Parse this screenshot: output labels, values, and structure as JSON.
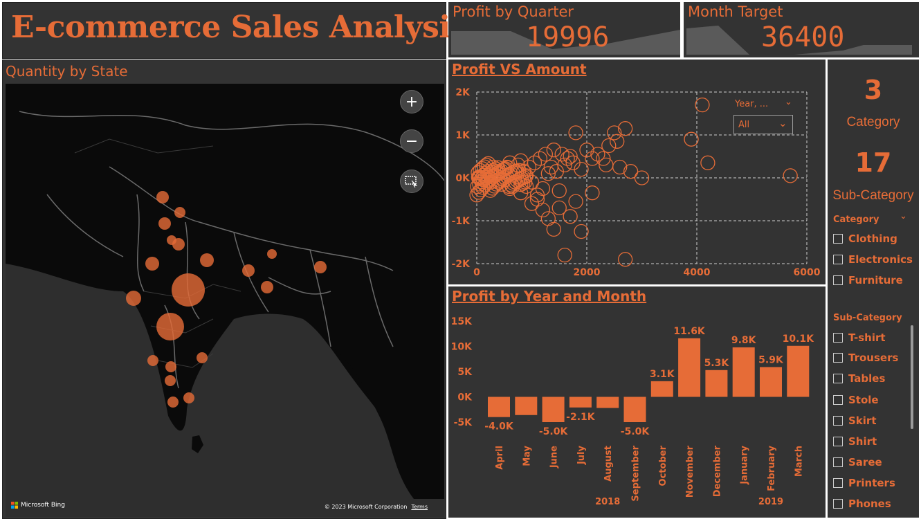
{
  "dashboard": {
    "title": "E-commerce Sales Analysis"
  },
  "map": {
    "title": "Quantity by State",
    "zoom_in": "+",
    "zoom_out": "−",
    "bing_label": "Microsoft Bing",
    "copyright": "© 2023 Microsoft Corporation",
    "terms": "Terms",
    "bubble_color": "#e66c37",
    "icons": {
      "zoom_in": "plus-icon",
      "zoom_out": "minus-icon",
      "select": "selection-icon"
    }
  },
  "kpis": {
    "profit_by_quarter": {
      "title": "Profit by Quarter",
      "value": "19996"
    },
    "month_target": {
      "title": "Month Target",
      "value": "36400"
    }
  },
  "scatter": {
    "title": "Profit VS Amount",
    "filter_label": "Year, ...",
    "filter_value": "All"
  },
  "bar": {
    "title": "Profit by Year and Month"
  },
  "side": {
    "category_count": "3",
    "category_label": "Category",
    "subcategory_count": "17",
    "subcategory_label": "Sub-Category",
    "category_slicer": {
      "title": "Category",
      "items": [
        "Clothing",
        "Electronics",
        "Furniture"
      ]
    },
    "subcategory_slicer": {
      "title": "Sub-Category",
      "items": [
        "T-shirt",
        "Trousers",
        "Tables",
        "Stole",
        "Skirt",
        "Shirt",
        "Saree",
        "Printers",
        "Phones"
      ]
    }
  },
  "colors": {
    "accent": "#e66c37",
    "panel": "#333333",
    "map_bg": "#0a0a0a"
  },
  "chart_data": [
    {
      "type": "scatter",
      "title": "Profit VS Amount",
      "xlabel": "",
      "ylabel": "",
      "xlim": [
        0,
        6000
      ],
      "ylim": [
        -2000,
        2000
      ],
      "x_ticks": [
        "0",
        "2000",
        "4000",
        "6000"
      ],
      "y_ticks": [
        "2K",
        "1K",
        "0K",
        "-1K",
        "-2K"
      ],
      "grid": true,
      "points": [
        [
          4100,
          1700
        ],
        [
          3900,
          900
        ],
        [
          4200,
          350
        ],
        [
          5700,
          50
        ],
        [
          3000,
          0
        ],
        [
          2800,
          150
        ],
        [
          2600,
          250
        ],
        [
          2400,
          750
        ],
        [
          2500,
          1050
        ],
        [
          2700,
          1150
        ],
        [
          1800,
          1050
        ],
        [
          2000,
          650
        ],
        [
          2200,
          550
        ],
        [
          1900,
          200
        ],
        [
          1600,
          300
        ],
        [
          1400,
          650
        ],
        [
          1300,
          100
        ],
        [
          1700,
          500
        ],
        [
          1500,
          -300
        ],
        [
          1100,
          -400
        ],
        [
          900,
          -200
        ],
        [
          700,
          -100
        ],
        [
          1800,
          -550
        ],
        [
          1300,
          -950
        ],
        [
          1200,
          -750
        ],
        [
          1400,
          -1200
        ],
        [
          2700,
          -1900
        ],
        [
          1900,
          -1250
        ],
        [
          1600,
          -1800
        ],
        [
          1000,
          -600
        ],
        [
          800,
          400
        ],
        [
          600,
          350
        ],
        [
          500,
          200
        ],
        [
          400,
          100
        ],
        [
          300,
          50
        ],
        [
          200,
          -50
        ],
        [
          100,
          0
        ],
        [
          150,
          100
        ],
        [
          250,
          -100
        ],
        [
          350,
          150
        ],
        [
          450,
          -150
        ],
        [
          550,
          250
        ],
        [
          650,
          -200
        ],
        [
          750,
          300
        ],
        [
          850,
          150
        ],
        [
          950,
          250
        ],
        [
          1050,
          350
        ],
        [
          1150,
          450
        ],
        [
          1250,
          550
        ],
        [
          1350,
          250
        ],
        [
          1450,
          150
        ],
        [
          1550,
          550
        ],
        [
          1650,
          450
        ],
        [
          1750,
          350
        ],
        [
          2100,
          450
        ],
        [
          2300,
          450
        ],
        [
          2550,
          850
        ],
        [
          2350,
          300
        ],
        [
          1200,
          -250
        ],
        [
          1000,
          -100
        ],
        [
          900,
          50
        ],
        [
          700,
          150
        ],
        [
          500,
          -50
        ],
        [
          400,
          -100
        ],
        [
          600,
          -250
        ],
        [
          800,
          -350
        ],
        [
          1100,
          -500
        ],
        [
          1500,
          -700
        ],
        [
          1700,
          -900
        ],
        [
          2100,
          -350
        ],
        [
          300,
          250
        ],
        [
          200,
          150
        ],
        [
          120,
          60
        ],
        [
          80,
          -30
        ],
        [
          60,
          20
        ],
        [
          50,
          -10
        ],
        [
          40,
          0
        ],
        [
          30,
          10
        ]
      ]
    },
    {
      "type": "bar",
      "title": "Profit by Year and Month",
      "xlabel": "",
      "ylabel": "",
      "ylim": [
        -5000,
        15000
      ],
      "y_ticks": [
        "15K",
        "10K",
        "5K",
        "0K",
        "-5K"
      ],
      "categories": [
        "April",
        "May",
        "June",
        "July",
        "August",
        "September",
        "October",
        "November",
        "December",
        "January",
        "February",
        "March"
      ],
      "years": [
        {
          "label": "2018",
          "span": [
            0,
            8
          ]
        },
        {
          "label": "2019",
          "span": [
            9,
            11
          ]
        }
      ],
      "values": [
        -4000,
        -3600,
        -5000,
        -2100,
        -2200,
        -5000,
        3100,
        11600,
        5300,
        9800,
        5900,
        10100
      ],
      "data_labels": [
        "-4.0K",
        "",
        "-5.0K",
        "-2.1K",
        "",
        "-5.0K",
        "3.1K",
        "11.6K",
        "5.3K",
        "9.8K",
        "5.9K",
        "10.1K"
      ]
    }
  ]
}
